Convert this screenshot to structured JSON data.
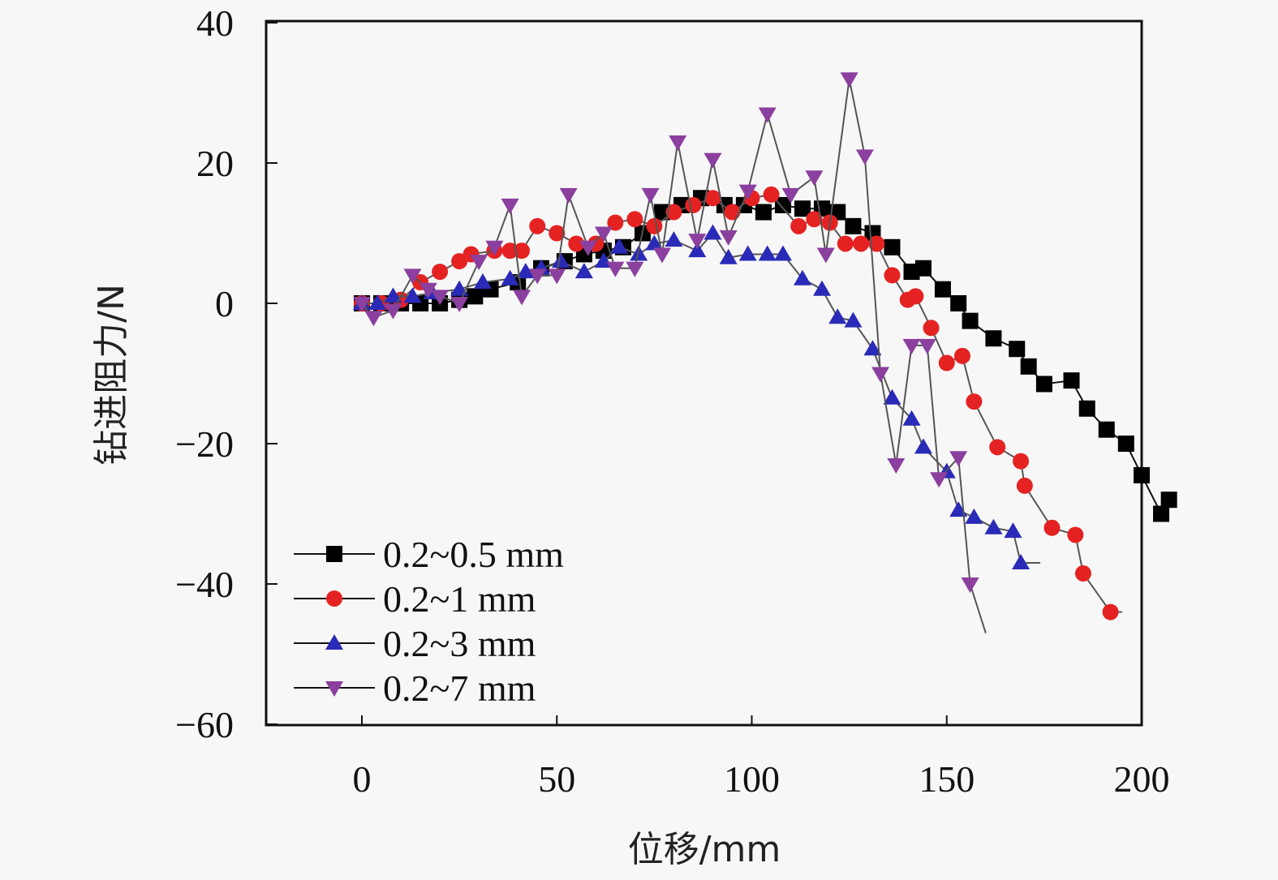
{
  "chart_data": {
    "type": "line",
    "title": "",
    "xlabel": "位移/mm",
    "ylabel": "钻进阻力/N",
    "xlim": [
      -25,
      200
    ],
    "ylim": [
      -60,
      40
    ],
    "xticks": [
      0,
      50,
      100,
      150,
      200
    ],
    "yticks": [
      40,
      20,
      0,
      -20,
      -40,
      -60
    ],
    "xtick_labels": [
      "0",
      "50",
      "100",
      "150",
      "200"
    ],
    "ytick_labels": [
      "40",
      "20",
      "0",
      "−20",
      "−40",
      "−60"
    ],
    "grid": false,
    "legend_position": "bottom-left",
    "series": [
      {
        "name": "0.2~0.5 mm",
        "color": "#000000",
        "marker": "square",
        "x": [
          0,
          5,
          10,
          15,
          20,
          25,
          29,
          33,
          40,
          46,
          52,
          57,
          62,
          67,
          72,
          77,
          82,
          87,
          93,
          98,
          103,
          108,
          113,
          118,
          122,
          126,
          131,
          136,
          141,
          144,
          149,
          153,
          156,
          162,
          168,
          171,
          175,
          182,
          186,
          191,
          196,
          200,
          205,
          207
        ],
        "y": [
          0,
          0,
          0,
          0,
          0,
          0.5,
          1,
          2,
          3,
          5,
          6,
          7,
          7.5,
          8,
          10,
          13,
          14,
          15,
          14,
          14,
          13,
          14,
          13.5,
          13.5,
          13,
          11,
          10,
          8,
          4.5,
          5,
          2,
          0,
          -2.5,
          -5,
          -6.5,
          -9,
          -11.5,
          -11,
          -15,
          -18,
          -20,
          -24.5,
          -30,
          -28
        ]
      },
      {
        "name": "0.2~1 mm",
        "color": "#e52222",
        "marker": "circle",
        "x": [
          0,
          5,
          10,
          15,
          20,
          25,
          28,
          34,
          38,
          41,
          45,
          50,
          55,
          60,
          65,
          70,
          75,
          80,
          85,
          90,
          95,
          100,
          105,
          112,
          116,
          120,
          124,
          128,
          132,
          136,
          140,
          142,
          146,
          150,
          154,
          157,
          163,
          169,
          170,
          177,
          183,
          185,
          192,
          195
        ],
        "y": [
          0,
          0,
          0.5,
          3,
          4.5,
          6,
          7,
          7.5,
          7.5,
          7.5,
          11,
          10,
          8.5,
          8.5,
          11.5,
          12,
          11,
          13,
          14,
          15,
          13,
          15,
          15.5,
          11,
          12,
          11.5,
          8.5,
          8.5,
          8.5,
          4,
          0.5,
          1,
          -3.5,
          -8.5,
          -7.5,
          -14,
          -20.5,
          -22.5,
          -26,
          -32,
          -33,
          -38.5,
          -44,
          -44
        ]
      },
      {
        "name": "0.2~3 mm",
        "color": "#2a2ab8",
        "marker": "triangle-up",
        "x": [
          0,
          4,
          8,
          13,
          18,
          25,
          31,
          38,
          42,
          46,
          51,
          57,
          62,
          66,
          71,
          75,
          80,
          86,
          90,
          94,
          99,
          104,
          108,
          113,
          118,
          122,
          126,
          131,
          136,
          141,
          144,
          150,
          153,
          157,
          162,
          167,
          169,
          174
        ],
        "y": [
          0,
          0,
          1,
          1,
          1.5,
          2,
          3,
          3.5,
          4.5,
          5,
          6,
          4.5,
          6,
          8,
          7,
          8.5,
          9,
          7.5,
          10,
          6.5,
          7,
          7,
          7,
          3.5,
          2,
          -2,
          -2.5,
          -6.5,
          -13.5,
          -16.5,
          -20.5,
          -24,
          -29.5,
          -30.5,
          -32,
          -32.5,
          -37,
          -37
        ]
      },
      {
        "name": "0.2~7 mm",
        "color": "#8b3f9e",
        "marker": "triangle-down",
        "x": [
          0,
          3,
          8,
          13,
          17,
          20,
          25,
          30,
          34,
          38,
          41,
          45,
          50,
          53,
          58,
          62,
          65,
          70,
          74,
          77,
          81,
          86,
          90,
          94,
          99,
          104,
          110,
          116,
          119,
          125,
          129,
          133,
          137,
          141,
          145,
          148,
          153,
          156,
          160
        ],
        "y": [
          0,
          -2,
          -1,
          4,
          2,
          1,
          0,
          6,
          8,
          14,
          1,
          4,
          4,
          15.5,
          8,
          10,
          5,
          5,
          15.5,
          7,
          23,
          9,
          20.5,
          9.5,
          16,
          27,
          15.5,
          18,
          7,
          32,
          21,
          -10,
          -23,
          -6,
          -6,
          -25,
          -22,
          -40,
          -47
        ]
      }
    ]
  }
}
